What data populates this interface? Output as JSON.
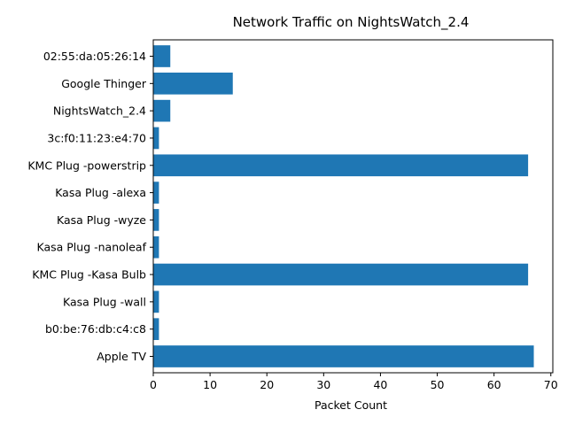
{
  "chart_data": {
    "type": "bar",
    "orientation": "horizontal",
    "title": "Network Traffic on NightsWatch_2.4",
    "xlabel": "Packet Count",
    "ylabel": "",
    "xlim": [
      0,
      70.35
    ],
    "xticks": [
      0,
      10,
      20,
      30,
      40,
      50,
      60,
      70
    ],
    "grid": false,
    "legend": "none",
    "bar_color": "#1f77b4",
    "categories": [
      "02:55:da:05:26:14",
      "Google Thinger",
      "NightsWatch_2.4",
      "3c:f0:11:23:e4:70",
      "KMC Plug -powerstrip",
      "Kasa Plug -alexa",
      "Kasa Plug -wyze",
      "Kasa Plug -nanoleaf",
      "KMC Plug -Kasa Bulb",
      "Kasa Plug -wall",
      "b0:be:76:db:c4:c8",
      "Apple TV"
    ],
    "values": [
      3,
      14,
      3,
      1,
      66,
      1,
      1,
      1,
      66,
      1,
      1,
      67
    ]
  }
}
